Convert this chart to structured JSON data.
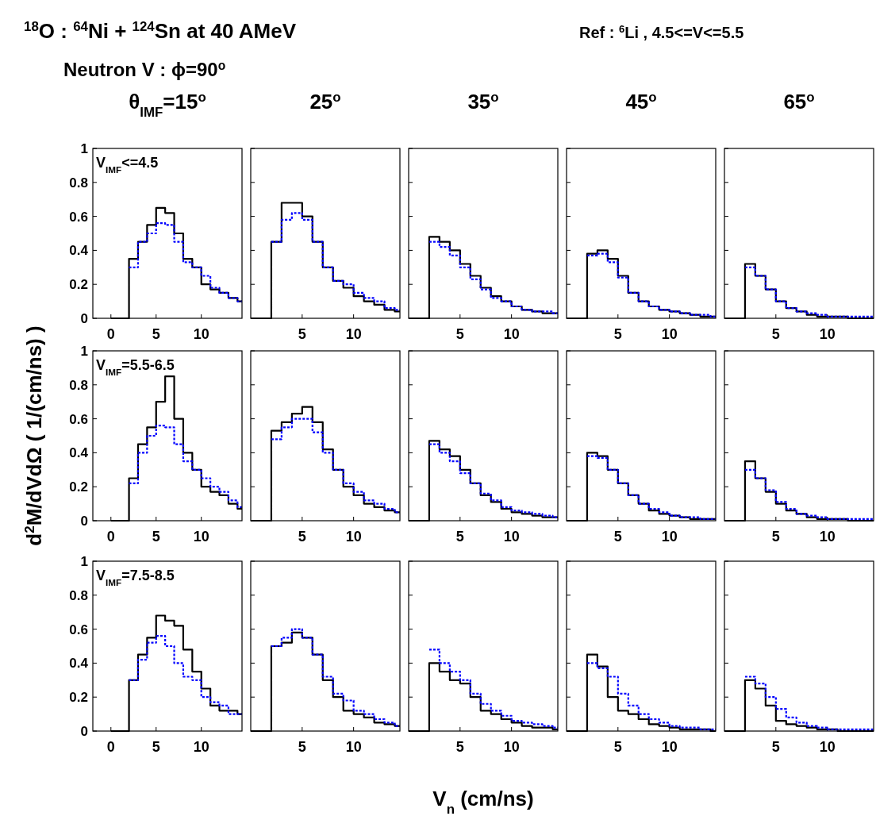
{
  "chart_data": [
    {
      "type": "other",
      "title": "$^{18}$O :  $^{64}$Ni + $^{124}$Sn at 40 AMeV",
      "subtitle": "Neutron V : ϕ=90$^{o}$",
      "annotations": [
        "Ref : $^{6}$Li , 4.5<=V<=5.5"
      ]
    },
    {
      "type": "step",
      "title": "θ$_{IMF}$=15$^{o}$",
      "annotations": [
        "V$_{IMF}$<=4.5"
      ],
      "xlim": [
        -2,
        14.5
      ],
      "ylim": [
        0,
        1
      ],
      "xticks": [
        0,
        5,
        10
      ],
      "yticks": [
        0,
        0.2,
        0.4,
        0.6,
        0.8,
        1
      ],
      "x": [
        0,
        2,
        3,
        4,
        5,
        6,
        7,
        8,
        9,
        10,
        11,
        12,
        13,
        14,
        14.5
      ],
      "series": [
        {
          "color": "#000000",
          "line_style": "solid",
          "values": [
            0,
            0.35,
            0.45,
            0.55,
            0.65,
            0.62,
            0.5,
            0.35,
            0.3,
            0.2,
            0.17,
            0.15,
            0.12,
            0.1,
            0.1
          ]
        },
        {
          "color": "#0000ff",
          "line_style": "dotted",
          "values": [
            null,
            0.3,
            0.45,
            0.5,
            0.56,
            0.55,
            0.45,
            0.33,
            0.3,
            0.25,
            0.18,
            0.15,
            0.12,
            0.1,
            0.1
          ]
        }
      ]
    },
    {
      "type": "step",
      "title": "25$^{o}$",
      "tick_labels": "x",
      "xlim": [
        0,
        14.5
      ],
      "ylim": [
        0,
        1
      ],
      "xticks": [
        5,
        10
      ],
      "yticks": [
        0,
        0.2,
        0.4,
        0.6,
        0.8,
        1
      ],
      "x": [
        0,
        2,
        3,
        4,
        5,
        6,
        7,
        8,
        9,
        10,
        11,
        12,
        13,
        14,
        14.5
      ],
      "series": [
        {
          "color": "#000000",
          "line_style": "solid",
          "values": [
            0,
            0.45,
            0.68,
            0.68,
            0.6,
            0.45,
            0.3,
            0.22,
            0.18,
            0.13,
            0.1,
            0.08,
            0.05,
            0.04,
            0.04
          ]
        },
        {
          "color": "#0000ff",
          "line_style": "dotted",
          "values": [
            null,
            0.45,
            0.58,
            0.62,
            0.58,
            0.45,
            0.3,
            0.22,
            0.2,
            0.15,
            0.12,
            0.1,
            0.06,
            0.05,
            0.05
          ]
        }
      ]
    },
    {
      "type": "step",
      "title": "35$^{o}$",
      "tick_labels": "x",
      "xlim": [
        0,
        14.5
      ],
      "ylim": [
        0,
        1
      ],
      "xticks": [
        5,
        10
      ],
      "yticks": [
        0,
        0.2,
        0.4,
        0.6,
        0.8,
        1
      ],
      "x": [
        0,
        2,
        3,
        4,
        5,
        6,
        7,
        8,
        9,
        10,
        11,
        12,
        13,
        14,
        14.5
      ],
      "series": [
        {
          "color": "#000000",
          "line_style": "solid",
          "values": [
            0,
            0.48,
            0.45,
            0.4,
            0.32,
            0.25,
            0.18,
            0.13,
            0.1,
            0.07,
            0.05,
            0.04,
            0.03,
            0.03,
            0.03
          ]
        },
        {
          "color": "#0000ff",
          "line_style": "dotted",
          "values": [
            null,
            0.45,
            0.42,
            0.37,
            0.3,
            0.23,
            0.17,
            0.12,
            0.1,
            0.07,
            0.05,
            0.04,
            0.04,
            0.03,
            0.03
          ]
        }
      ]
    },
    {
      "type": "step",
      "title": "45$^{o}$",
      "tick_labels": "x",
      "xlim": [
        0,
        14.5
      ],
      "ylim": [
        0,
        1
      ],
      "xticks": [
        5,
        10
      ],
      "yticks": [
        0,
        0.2,
        0.4,
        0.6,
        0.8,
        1
      ],
      "x": [
        0,
        2,
        3,
        4,
        5,
        6,
        7,
        8,
        9,
        10,
        11,
        12,
        13,
        14,
        14.5
      ],
      "series": [
        {
          "color": "#000000",
          "line_style": "solid",
          "values": [
            0,
            0.38,
            0.4,
            0.35,
            0.25,
            0.15,
            0.1,
            0.07,
            0.05,
            0.04,
            0.03,
            0.02,
            0.01,
            0.01,
            0.01
          ]
        },
        {
          "color": "#0000ff",
          "line_style": "dotted",
          "values": [
            null,
            0.37,
            0.38,
            0.33,
            0.24,
            0.15,
            0.1,
            0.07,
            0.05,
            0.04,
            0.03,
            0.02,
            0.02,
            0.01,
            0.01
          ]
        }
      ]
    },
    {
      "type": "step",
      "title": "65$^{o}$",
      "tick_labels": "x",
      "xlim": [
        0,
        14.5
      ],
      "ylim": [
        0,
        1
      ],
      "xticks": [
        5,
        10
      ],
      "yticks": [
        0,
        0.2,
        0.4,
        0.6,
        0.8,
        1
      ],
      "x": [
        0,
        2,
        3,
        4,
        5,
        6,
        7,
        8,
        9,
        10,
        11,
        12,
        13,
        14,
        14.5
      ],
      "series": [
        {
          "color": "#000000",
          "line_style": "solid",
          "values": [
            0,
            0.32,
            0.25,
            0.17,
            0.1,
            0.06,
            0.04,
            0.02,
            0.01,
            0.01,
            0.01,
            0,
            0,
            0,
            0
          ]
        },
        {
          "color": "#0000ff",
          "line_style": "dotted",
          "values": [
            null,
            0.3,
            0.25,
            0.17,
            0.1,
            0.06,
            0.04,
            0.03,
            0.02,
            0.01,
            0.01,
            0.01,
            0.01,
            0.01,
            0.01
          ]
        }
      ]
    },
    {
      "type": "step",
      "annotations": [
        "V$_{IMF}$=5.5-6.5"
      ],
      "ylabel": "d$^{2}$M/dVdΩ ( 1/(cm/ns) )",
      "xlim": [
        -2,
        14.5
      ],
      "ylim": [
        0,
        1
      ],
      "xticks": [
        0,
        5,
        10
      ],
      "yticks": [
        0,
        0.2,
        0.4,
        0.6,
        0.8,
        1
      ],
      "x": [
        0,
        2,
        3,
        4,
        5,
        6,
        7,
        8,
        9,
        10,
        11,
        12,
        13,
        14,
        14.5
      ],
      "series": [
        {
          "color": "#000000",
          "line_style": "solid",
          "values": [
            0,
            0.25,
            0.45,
            0.55,
            0.7,
            0.85,
            0.6,
            0.4,
            0.3,
            0.2,
            0.17,
            0.15,
            0.1,
            0.07,
            0.07
          ]
        },
        {
          "color": "#0000ff",
          "line_style": "dotted",
          "values": [
            null,
            0.22,
            0.4,
            0.5,
            0.56,
            0.55,
            0.45,
            0.35,
            0.3,
            0.25,
            0.2,
            0.17,
            0.12,
            0.08,
            0.08
          ]
        }
      ]
    },
    {
      "type": "step",
      "tick_labels": "x",
      "xlim": [
        0,
        14.5
      ],
      "ylim": [
        0,
        1
      ],
      "xticks": [
        5,
        10
      ],
      "yticks": [
        0,
        0.2,
        0.4,
        0.6,
        0.8,
        1
      ],
      "x": [
        0,
        2,
        3,
        4,
        5,
        6,
        7,
        8,
        9,
        10,
        11,
        12,
        13,
        14,
        14.5
      ],
      "series": [
        {
          "color": "#000000",
          "line_style": "solid",
          "values": [
            0,
            0.53,
            0.58,
            0.63,
            0.67,
            0.58,
            0.42,
            0.3,
            0.2,
            0.15,
            0.1,
            0.08,
            0.06,
            0.05,
            0.05
          ]
        },
        {
          "color": "#0000ff",
          "line_style": "dotted",
          "values": [
            null,
            0.48,
            0.55,
            0.6,
            0.6,
            0.52,
            0.4,
            0.3,
            0.22,
            0.17,
            0.12,
            0.1,
            0.07,
            0.05,
            0.05
          ]
        }
      ]
    },
    {
      "type": "step",
      "tick_labels": "x",
      "xlim": [
        0,
        14.5
      ],
      "ylim": [
        0,
        1
      ],
      "xticks": [
        5,
        10
      ],
      "yticks": [
        0,
        0.2,
        0.4,
        0.6,
        0.8,
        1
      ],
      "x": [
        0,
        2,
        3,
        4,
        5,
        6,
        7,
        8,
        9,
        10,
        11,
        12,
        13,
        14,
        14.5
      ],
      "series": [
        {
          "color": "#000000",
          "line_style": "solid",
          "values": [
            0,
            0.47,
            0.42,
            0.38,
            0.3,
            0.22,
            0.15,
            0.11,
            0.07,
            0.05,
            0.04,
            0.03,
            0.02,
            0.02,
            0.02
          ]
        },
        {
          "color": "#0000ff",
          "line_style": "dotted",
          "values": [
            null,
            0.45,
            0.4,
            0.35,
            0.28,
            0.22,
            0.16,
            0.12,
            0.08,
            0.06,
            0.05,
            0.04,
            0.03,
            0.02,
            0.02
          ]
        }
      ]
    },
    {
      "type": "step",
      "tick_labels": "x",
      "xlim": [
        0,
        14.5
      ],
      "ylim": [
        0,
        1
      ],
      "xticks": [
        5,
        10
      ],
      "yticks": [
        0,
        0.2,
        0.4,
        0.6,
        0.8,
        1
      ],
      "x": [
        0,
        2,
        3,
        4,
        5,
        6,
        7,
        8,
        9,
        10,
        11,
        12,
        13,
        14,
        14.5
      ],
      "series": [
        {
          "color": "#000000",
          "line_style": "solid",
          "values": [
            0,
            0.4,
            0.38,
            0.3,
            0.22,
            0.15,
            0.1,
            0.06,
            0.04,
            0.03,
            0.02,
            0.01,
            0.01,
            0.01,
            0.01
          ]
        },
        {
          "color": "#0000ff",
          "line_style": "dotted",
          "values": [
            null,
            0.38,
            0.37,
            0.3,
            0.22,
            0.15,
            0.1,
            0.07,
            0.05,
            0.03,
            0.02,
            0.02,
            0.01,
            0.01,
            0.01
          ]
        }
      ]
    },
    {
      "type": "step",
      "tick_labels": "x",
      "xlim": [
        0,
        14.5
      ],
      "ylim": [
        0,
        1
      ],
      "xticks": [
        5,
        10
      ],
      "yticks": [
        0,
        0.2,
        0.4,
        0.6,
        0.8,
        1
      ],
      "x": [
        0,
        2,
        3,
        4,
        5,
        6,
        7,
        8,
        9,
        10,
        11,
        12,
        13,
        14,
        14.5
      ],
      "series": [
        {
          "color": "#000000",
          "line_style": "solid",
          "values": [
            0,
            0.35,
            0.25,
            0.17,
            0.1,
            0.06,
            0.04,
            0.02,
            0.01,
            0.01,
            0.01,
            0,
            0,
            0,
            0
          ]
        },
        {
          "color": "#0000ff",
          "line_style": "dotted",
          "values": [
            null,
            0.3,
            0.25,
            0.18,
            0.11,
            0.07,
            0.04,
            0.03,
            0.02,
            0.01,
            0.01,
            0.01,
            0.01,
            0.01,
            0.01
          ]
        }
      ]
    },
    {
      "type": "step",
      "annotations": [
        "V$_{IMF}$=7.5-8.5"
      ],
      "xlim": [
        -2,
        14.5
      ],
      "ylim": [
        0,
        1
      ],
      "xticks": [
        0,
        5,
        10
      ],
      "yticks": [
        0,
        0.2,
        0.4,
        0.6,
        0.8,
        1
      ],
      "x": [
        0,
        2,
        3,
        4,
        5,
        6,
        7,
        8,
        9,
        10,
        11,
        12,
        13,
        14,
        14.5
      ],
      "series": [
        {
          "color": "#000000",
          "line_style": "solid",
          "values": [
            0,
            0.3,
            0.45,
            0.55,
            0.68,
            0.65,
            0.62,
            0.48,
            0.35,
            0.25,
            0.15,
            0.12,
            0.12,
            0.1,
            0.1
          ]
        },
        {
          "color": "#0000ff",
          "line_style": "dotted",
          "values": [
            null,
            0.3,
            0.42,
            0.52,
            0.56,
            0.5,
            0.4,
            0.32,
            0.3,
            0.2,
            0.17,
            0.15,
            0.1,
            0.1,
            0.1
          ]
        }
      ]
    },
    {
      "type": "step",
      "tick_labels": "x",
      "xlim": [
        0,
        14.5
      ],
      "ylim": [
        0,
        1
      ],
      "xticks": [
        5,
        10
      ],
      "yticks": [
        0,
        0.2,
        0.4,
        0.6,
        0.8,
        1
      ],
      "x": [
        0,
        2,
        3,
        4,
        5,
        6,
        7,
        8,
        9,
        10,
        11,
        12,
        13,
        14,
        14.5
      ],
      "series": [
        {
          "color": "#000000",
          "line_style": "solid",
          "values": [
            0,
            0.5,
            0.52,
            0.58,
            0.55,
            0.45,
            0.3,
            0.2,
            0.12,
            0.1,
            0.08,
            0.05,
            0.04,
            0.03,
            0.03
          ]
        },
        {
          "color": "#0000ff",
          "line_style": "dotted",
          "values": [
            null,
            0.5,
            0.55,
            0.6,
            0.55,
            0.45,
            0.32,
            0.22,
            0.18,
            0.12,
            0.1,
            0.07,
            0.05,
            0.03,
            0.03
          ]
        }
      ]
    },
    {
      "type": "step",
      "tick_labels": "x",
      "xlabel": "V$_{n}$ (cm/ns)",
      "xlim": [
        0,
        14.5
      ],
      "ylim": [
        0,
        1
      ],
      "xticks": [
        5,
        10
      ],
      "yticks": [
        0,
        0.2,
        0.4,
        0.6,
        0.8,
        1
      ],
      "x": [
        0,
        2,
        3,
        4,
        5,
        6,
        7,
        8,
        9,
        10,
        11,
        12,
        13,
        14,
        14.5
      ],
      "series": [
        {
          "color": "#000000",
          "line_style": "solid",
          "values": [
            0,
            0.4,
            0.35,
            0.3,
            0.28,
            0.2,
            0.12,
            0.1,
            0.07,
            0.05,
            0.03,
            0.02,
            0.02,
            0.01,
            0.01
          ]
        },
        {
          "color": "#0000ff",
          "line_style": "dotted",
          "values": [
            null,
            0.48,
            0.4,
            0.35,
            0.3,
            0.22,
            0.16,
            0.12,
            0.09,
            0.06,
            0.05,
            0.04,
            0.03,
            0.02,
            0.02
          ]
        }
      ]
    },
    {
      "type": "step",
      "tick_labels": "x",
      "xlim": [
        0,
        14.5
      ],
      "ylim": [
        0,
        1
      ],
      "xticks": [
        5,
        10
      ],
      "yticks": [
        0,
        0.2,
        0.4,
        0.6,
        0.8,
        1
      ],
      "x": [
        0,
        2,
        3,
        4,
        5,
        6,
        7,
        8,
        9,
        10,
        11,
        12,
        13,
        14,
        14.5
      ],
      "series": [
        {
          "color": "#000000",
          "line_style": "solid",
          "values": [
            0,
            0.45,
            0.38,
            0.2,
            0.12,
            0.1,
            0.07,
            0.04,
            0.03,
            0.02,
            0.01,
            0.01,
            0.01,
            0,
            0
          ]
        },
        {
          "color": "#0000ff",
          "line_style": "dotted",
          "values": [
            null,
            0.4,
            0.37,
            0.32,
            0.22,
            0.15,
            0.1,
            0.07,
            0.05,
            0.03,
            0.02,
            0.02,
            0.01,
            0.01,
            0.01
          ]
        }
      ]
    },
    {
      "type": "step",
      "tick_labels": "x",
      "xlim": [
        0,
        14.5
      ],
      "ylim": [
        0,
        1
      ],
      "xticks": [
        5,
        10
      ],
      "yticks": [
        0,
        0.2,
        0.4,
        0.6,
        0.8,
        1
      ],
      "x": [
        0,
        2,
        3,
        4,
        5,
        6,
        7,
        8,
        9,
        10,
        11,
        12,
        13,
        14,
        14.5
      ],
      "series": [
        {
          "color": "#000000",
          "line_style": "solid",
          "values": [
            0,
            0.3,
            0.25,
            0.15,
            0.06,
            0.04,
            0.03,
            0.02,
            0.01,
            0.01,
            0,
            0,
            0,
            0,
            0
          ]
        },
        {
          "color": "#0000ff",
          "line_style": "dotted",
          "values": [
            null,
            0.32,
            0.28,
            0.2,
            0.13,
            0.08,
            0.05,
            0.03,
            0.02,
            0.01,
            0.01,
            0.01,
            0.01,
            0.01,
            0.01
          ]
        }
      ]
    }
  ]
}
